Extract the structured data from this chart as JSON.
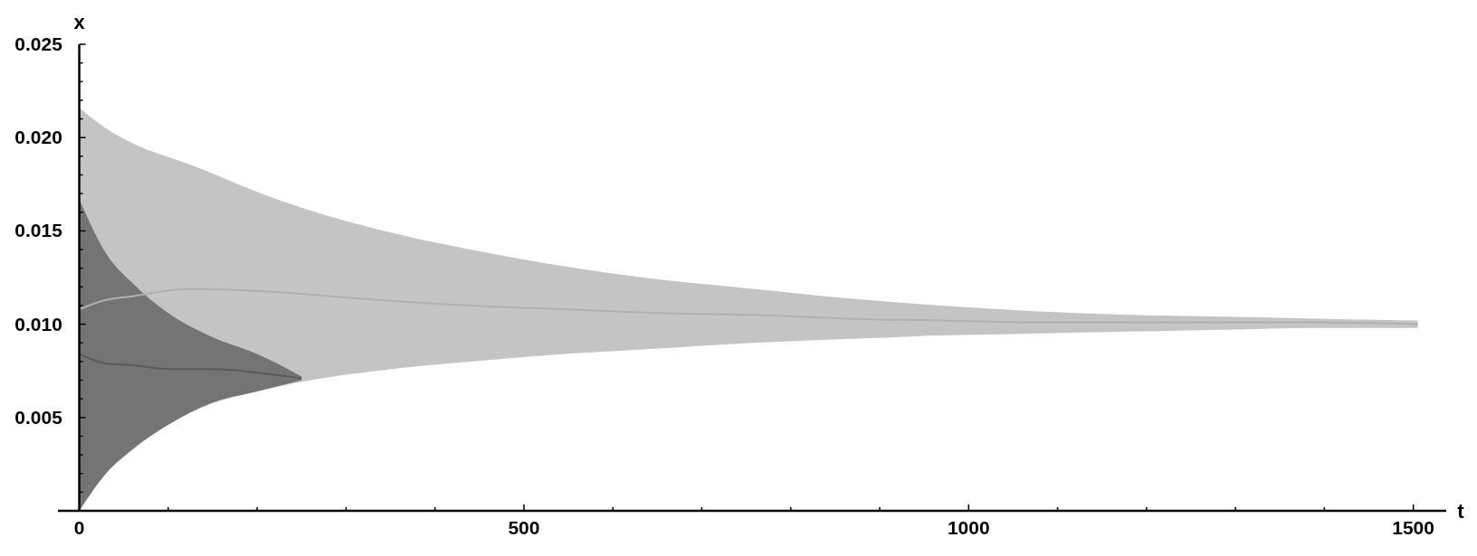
{
  "chart_data": {
    "type": "line",
    "xlabel": "t",
    "ylabel": "x",
    "xlim": [
      -24,
      1537
    ],
    "ylim": [
      0,
      0.025
    ],
    "xticks": [
      0,
      {
        "value": 100,
        "label": null
      },
      {
        "value": 200,
        "label": null
      },
      {
        "value": 300,
        "label": null
      },
      {
        "value": 400,
        "label": null
      },
      500,
      {
        "value": 600,
        "label": null
      },
      {
        "value": 700,
        "label": null
      },
      {
        "value": 800,
        "label": null
      },
      {
        "value": 900,
        "label": null
      },
      1000,
      {
        "value": 1100,
        "label": null
      },
      {
        "value": 1200,
        "label": null
      },
      {
        "value": 1300,
        "label": null
      },
      {
        "value": 1400,
        "label": null
      },
      1500
    ],
    "yticks": [
      {
        "value": 0.001,
        "label": null
      },
      {
        "value": 0.002,
        "label": null
      },
      {
        "value": 0.003,
        "label": null
      },
      {
        "value": 0.004,
        "label": null
      },
      0.005,
      {
        "value": 0.006,
        "label": null
      },
      {
        "value": 0.007,
        "label": null
      },
      {
        "value": 0.008,
        "label": null
      },
      {
        "value": 0.009,
        "label": null
      },
      {
        "value": 0.01,
        "label": "0.010"
      },
      {
        "value": 0.011,
        "label": null
      },
      {
        "value": 0.012,
        "label": null
      },
      {
        "value": 0.013,
        "label": null
      },
      {
        "value": 0.014,
        "label": null
      },
      0.015,
      {
        "value": 0.016,
        "label": null
      },
      {
        "value": 0.017,
        "label": null
      },
      {
        "value": 0.018,
        "label": null
      },
      {
        "value": 0.019,
        "label": null
      },
      {
        "value": 0.02,
        "label": "0.020"
      },
      {
        "value": 0.021,
        "label": null
      },
      {
        "value": 0.022,
        "label": null
      },
      {
        "value": 0.023,
        "label": null
      },
      {
        "value": 0.024,
        "label": null
      },
      0.025
    ],
    "grid": false,
    "series": [
      {
        "color": "#b0b0b0",
        "x": [
          0,
          30,
          60,
          122,
          228,
          334,
          440,
          545,
          651,
          757,
          862,
          968,
          1074,
          1180,
          1286,
          1391,
          1505
        ],
        "values": [
          0.0108,
          0.0113,
          0.0115,
          0.0119,
          0.0117,
          0.0113,
          0.011,
          0.0108,
          0.0106,
          0.0105,
          0.0103,
          0.0102,
          0.0101,
          0.0101,
          0.0101,
          0.0101,
          0.01
        ],
        "upper": [
          0.0216,
          0.0205,
          0.0197,
          0.0186,
          0.0166,
          0.0151,
          0.014,
          0.0131,
          0.0124,
          0.0119,
          0.0114,
          0.011,
          0.0107,
          0.0105,
          0.0104,
          0.0103,
          0.0102
        ],
        "lower": [
          0.0,
          0.002,
          0.0033,
          0.0052,
          0.0067,
          0.0075,
          0.008,
          0.0084,
          0.0087,
          0.009,
          0.0092,
          0.0094,
          0.0095,
          0.0096,
          0.0097,
          0.0098,
          0.0098
        ]
      },
      {
        "color": "#5a5a5a",
        "x": [
          0,
          30,
          60,
          100,
          150,
          200,
          250
        ],
        "values": [
          0.0084,
          0.0079,
          0.0078,
          0.0076,
          0.0076,
          0.0074,
          0.0071
        ],
        "upper": [
          0.0167,
          0.0138,
          0.0122,
          0.0106,
          0.0093,
          0.0084,
          0.0072
        ],
        "lower": [
          0.0,
          0.002,
          0.0033,
          0.0046,
          0.0058,
          0.0064,
          0.007
        ]
      }
    ]
  }
}
